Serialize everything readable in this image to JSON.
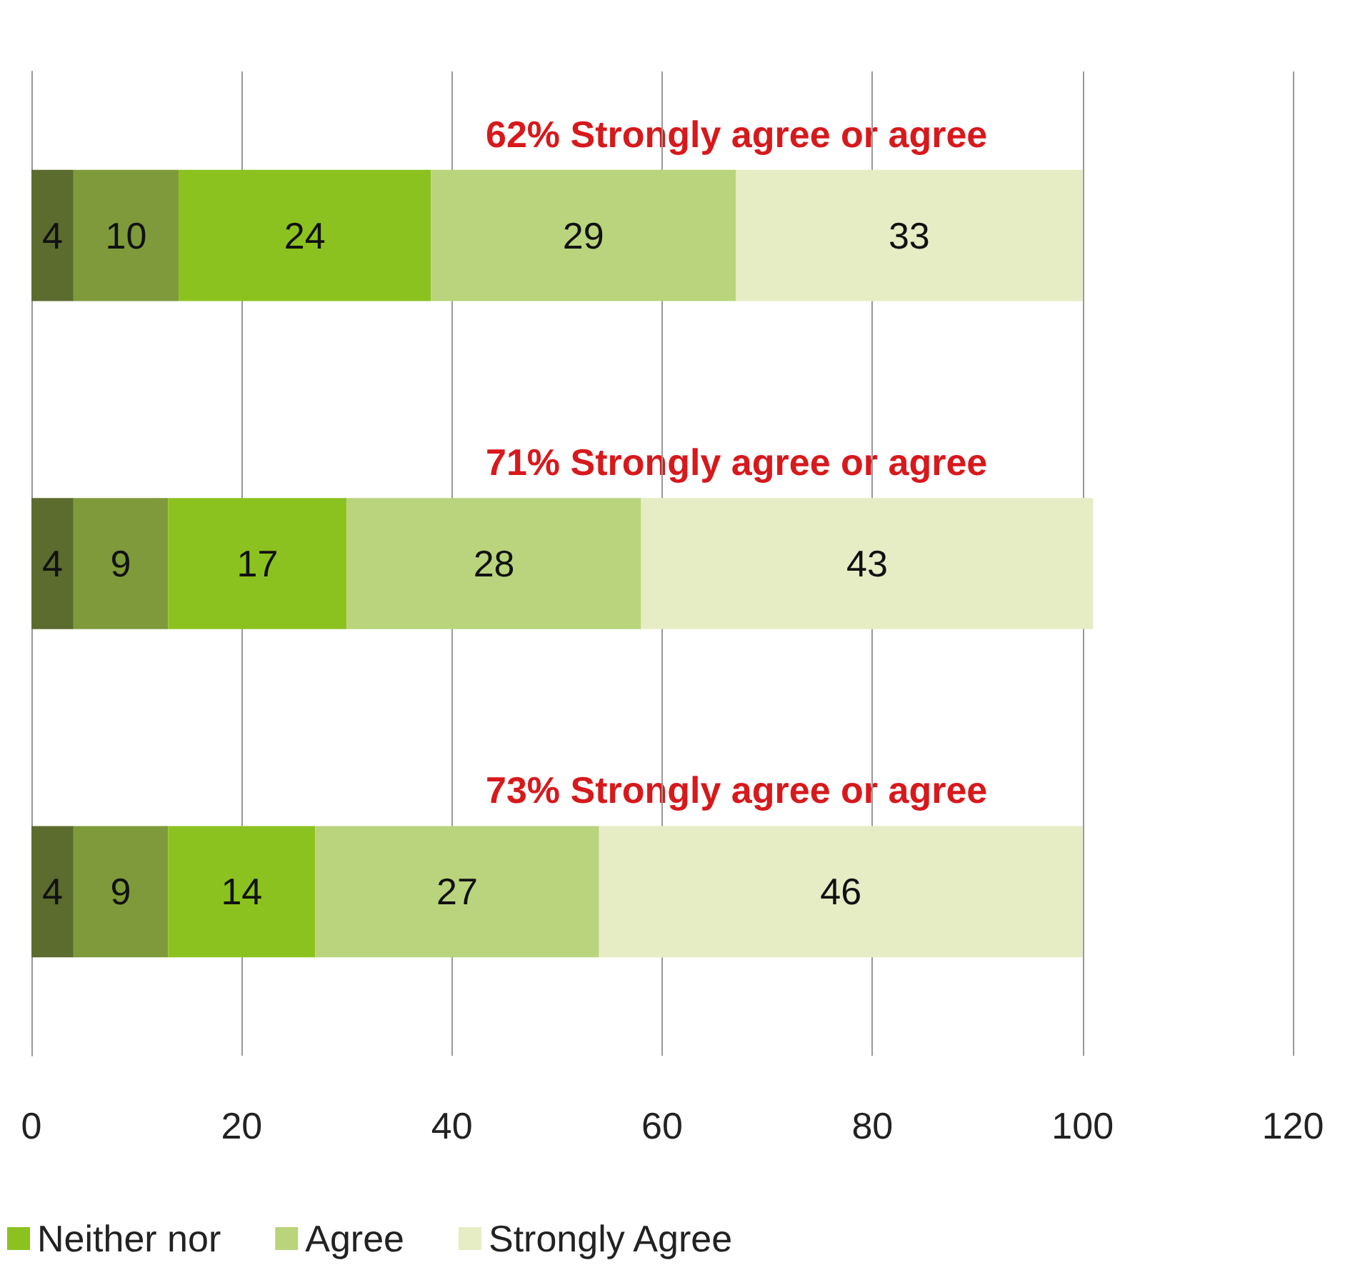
{
  "chart_data": {
    "type": "bar",
    "orientation": "horizontal",
    "stacked": true,
    "categories": [
      null,
      null,
      null
    ],
    "series": [
      {
        "color": "#5c6b2e",
        "values": [
          4,
          4,
          4
        ]
      },
      {
        "color": "#7f9a3a",
        "values": [
          10,
          9,
          9
        ]
      },
      {
        "name": "Neither nor",
        "color": "#8cc21f",
        "values": [
          24,
          17,
          14
        ]
      },
      {
        "name": "Agree",
        "color": "#b9d47c",
        "values": [
          29,
          28,
          27
        ]
      },
      {
        "name": "Strongly Agree",
        "color": "#e6ecc4",
        "values": [
          33,
          43,
          46
        ]
      }
    ],
    "xlim": [
      0,
      120
    ],
    "xticks": [
      0,
      20,
      40,
      60,
      80,
      100,
      120
    ],
    "grid": "x",
    "legend": "bottom left",
    "data_labels": true,
    "annotations": [
      "62% Strongly agree or agree",
      "71% Strongly agree or agree",
      "73% Strongly agree or agree"
    ]
  }
}
